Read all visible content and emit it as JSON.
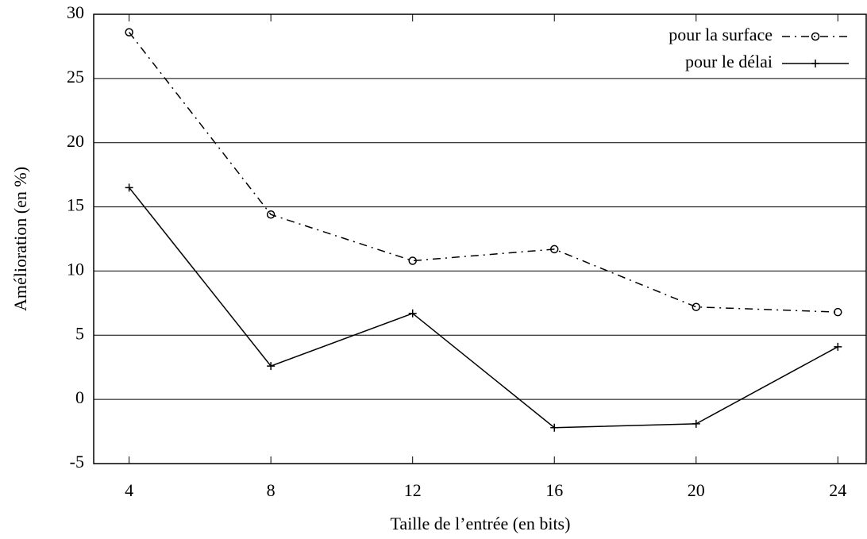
{
  "chart_data": {
    "type": "line",
    "xlabel": "Taille de l’entrée (en bits)",
    "ylabel": "Amélioration (en %)",
    "x": [
      4,
      8,
      12,
      16,
      20,
      24
    ],
    "series": [
      {
        "name": "pour la surface",
        "color": "#000000",
        "dashed": true,
        "marker": "circle",
        "values": [
          28.6,
          14.4,
          10.8,
          11.7,
          7.2,
          6.8
        ]
      },
      {
        "name": "pour le délai",
        "color": "#000000",
        "dashed": false,
        "marker": "plus",
        "values": [
          16.5,
          2.6,
          6.7,
          -2.2,
          -1.9,
          4.1
        ]
      }
    ],
    "xlim": [
      3,
      24.8
    ],
    "xticks": [
      4,
      8,
      12,
      16,
      20,
      24
    ],
    "ylim": [
      -5,
      30
    ],
    "yticks": [
      -5,
      0,
      5,
      10,
      15,
      20,
      25,
      30
    ],
    "grid": true,
    "legend": "upper right"
  }
}
